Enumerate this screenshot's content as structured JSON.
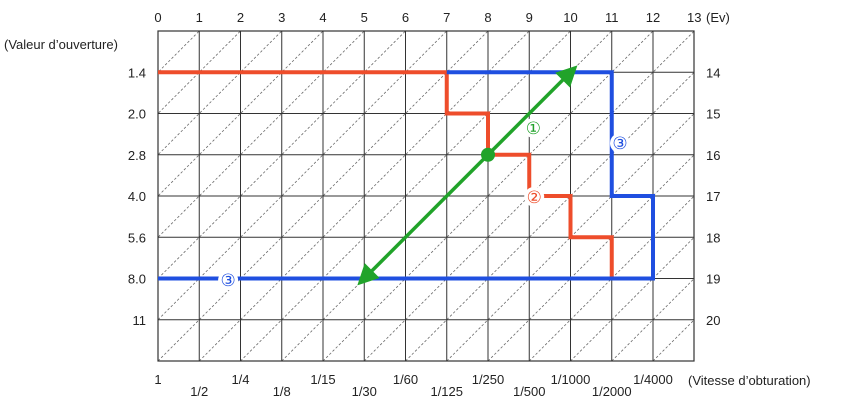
{
  "chart_data": {
    "type": "line",
    "title": "",
    "top_axis": {
      "values": [
        "0",
        "1",
        "2",
        "3",
        "4",
        "5",
        "6",
        "7",
        "8",
        "9",
        "10",
        "11",
        "12",
        "13"
      ],
      "unit": "(Ev)"
    },
    "left_axis": {
      "label": "(Valeur d’ouverture)",
      "values": [
        "1.4",
        "2.0",
        "2.8",
        "4.0",
        "5.6",
        "8.0",
        "11"
      ]
    },
    "right_axis": {
      "values": [
        "14",
        "15",
        "16",
        "17",
        "18",
        "19",
        "20"
      ]
    },
    "bottom_axis": {
      "label": "(Vitesse d’obturation)",
      "upper_row": [
        "1",
        "1/4",
        "1/15",
        "1/60",
        "1/250",
        "1/1000",
        "1/4000"
      ],
      "lower_row": [
        "1/2",
        "1/8",
        "1/30",
        "1/125",
        "1/500",
        "1/2000"
      ]
    },
    "grid": true,
    "diagonal_lines": true,
    "series": [
      {
        "marker": "②",
        "color": "#ee4d2b",
        "points": [
          [
            0,
            0
          ],
          [
            7,
            0
          ],
          [
            7,
            1
          ],
          [
            8,
            1
          ],
          [
            8,
            2
          ],
          [
            9,
            2
          ],
          [
            9,
            3
          ],
          [
            10,
            3
          ],
          [
            10,
            4
          ],
          [
            11,
            4
          ],
          [
            11,
            5
          ],
          [
            12,
            5
          ]
        ]
      },
      {
        "marker": "③",
        "color": "#1f4fe0",
        "points": [
          [
            0,
            5
          ],
          [
            12,
            5
          ],
          [
            12,
            3
          ],
          [
            11,
            3
          ],
          [
            11,
            0
          ],
          [
            7,
            0
          ]
        ]
      },
      {
        "marker": "①",
        "color": "#21a32a",
        "points": [
          [
            5,
            5
          ],
          [
            10,
            0
          ]
        ],
        "center_point": [
          8,
          2
        ]
      }
    ]
  }
}
